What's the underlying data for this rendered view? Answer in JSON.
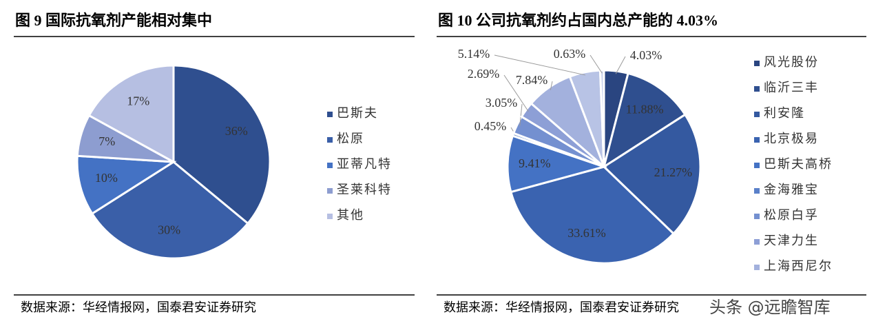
{
  "chart_data": [
    {
      "type": "pie",
      "title": "图 9 国际抗氧剂产能相对集中",
      "categories": [
        "巴斯夫",
        "松原",
        "亚蒂凡特",
        "圣莱科特",
        "其他"
      ],
      "values": [
        36,
        30,
        10,
        7,
        17
      ],
      "value_labels": [
        "36%",
        "30%",
        "10%",
        "7%",
        "17%"
      ],
      "colors": [
        "#2f4f8f",
        "#3a5fa8",
        "#4472c4",
        "#8d9dd0",
        "#b6bfe2"
      ],
      "legend": "right",
      "source": "数据来源：华经情报网，国泰君安证券研究"
    },
    {
      "type": "pie",
      "title": "图 10 公司抗氧剂约占国内总产能的 4.03%",
      "categories": [
        "风光股份",
        "临沂三丰",
        "利安隆",
        "北京极易",
        "巴斯夫高桥",
        "金海雅宝",
        "松原白孚",
        "天津力生",
        "上海西尼尔",
        null,
        null
      ],
      "values": [
        4.03,
        11.88,
        21.27,
        33.61,
        9.41,
        0.45,
        3.05,
        2.69,
        7.84,
        5.14,
        0.63
      ],
      "value_labels": [
        "4.03%",
        "11.88%",
        "21.27%",
        "33.61%",
        "9.41%",
        "0.45%",
        "3.05%",
        "2.69%",
        "7.84%",
        "5.14%",
        "0.63%"
      ],
      "colors": [
        "#2a4580",
        "#2f4f8f",
        "#3459a0",
        "#3a63b0",
        "#4472c4",
        "#5a80c9",
        "#7490d0",
        "#8d9fd6",
        "#a3b1dd",
        "#b8c3e5",
        "#cdd5ec"
      ],
      "legend": "right",
      "source": "数据来源：华经情报网，国泰君安证券研究"
    }
  ],
  "watermark": "头条 @远瞻智库"
}
